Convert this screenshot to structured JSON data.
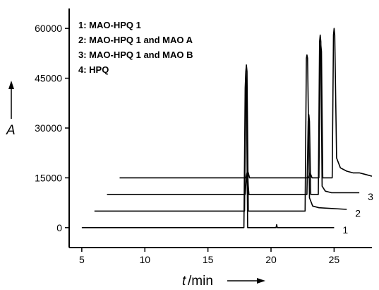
{
  "chart_data": {
    "type": "line",
    "title": "",
    "xlabel_symbol": "t",
    "xlabel_unit": "/min",
    "ylabel": "A",
    "xlim": [
      4,
      28
    ],
    "ylim": [
      -6000,
      66000
    ],
    "x_ticks": [
      5,
      10,
      15,
      20,
      25
    ],
    "y_ticks": [
      0,
      15000,
      30000,
      45000,
      60000
    ],
    "grid": false,
    "legend_position": "top-left",
    "legend": [
      "1: MAO-HPQ 1",
      "2: MAO-HPQ 1 and MAO A",
      "3: MAO-HPQ 1 and MAO B",
      "4: HPQ"
    ],
    "series": [
      {
        "label": "1",
        "baseline": 0,
        "x": [
          5,
          17.85,
          17.95,
          18.0,
          18.05,
          18.15,
          20.4,
          20.45,
          20.5,
          25
        ],
        "y": [
          0,
          0,
          42000,
          47000,
          42000,
          0,
          0,
          900,
          0,
          0
        ]
      },
      {
        "label": "2",
        "baseline": 5000,
        "x": [
          6,
          17.9,
          18.0,
          18.05,
          18.1,
          18.2,
          22.7,
          22.8,
          22.85,
          22.9,
          23.05,
          23.3,
          23.8,
          26
        ],
        "y": [
          5000,
          5000,
          47000,
          49000,
          47000,
          5000,
          5000,
          51000,
          52000,
          51000,
          9000,
          6500,
          6000,
          5500
        ]
      },
      {
        "label": "3",
        "baseline": 10000,
        "x": [
          7,
          17.95,
          18.05,
          18.1,
          18.15,
          18.25,
          22.85,
          22.95,
          23.0,
          23.05,
          23.15,
          23.75,
          23.85,
          23.9,
          23.95,
          24.05,
          24.3,
          24.8,
          27
        ],
        "y": [
          10000,
          10000,
          15000,
          16000,
          15000,
          10000,
          10000,
          32000,
          34000,
          32000,
          10000,
          10000,
          56000,
          58000,
          56000,
          12500,
          11000,
          10500,
          10500
        ]
      },
      {
        "label": "4",
        "baseline": 15000,
        "x": [
          8,
          18.0,
          18.1,
          18.15,
          18.2,
          18.3,
          22.95,
          23.05,
          23.1,
          23.15,
          23.25,
          23.8,
          23.9,
          23.95,
          24.0,
          24.1,
          24.85,
          24.95,
          25.0,
          25.05,
          25.2,
          25.5,
          26.0,
          26.5,
          27.0,
          27.5,
          28
        ],
        "y": [
          15000,
          15000,
          16500,
          17000,
          16500,
          15000,
          15000,
          16000,
          16500,
          16000,
          15000,
          15000,
          53000,
          55000,
          53000,
          15000,
          15000,
          58000,
          60000,
          58000,
          21000,
          18000,
          17000,
          16500,
          16500,
          16000,
          15500
        ]
      }
    ]
  }
}
